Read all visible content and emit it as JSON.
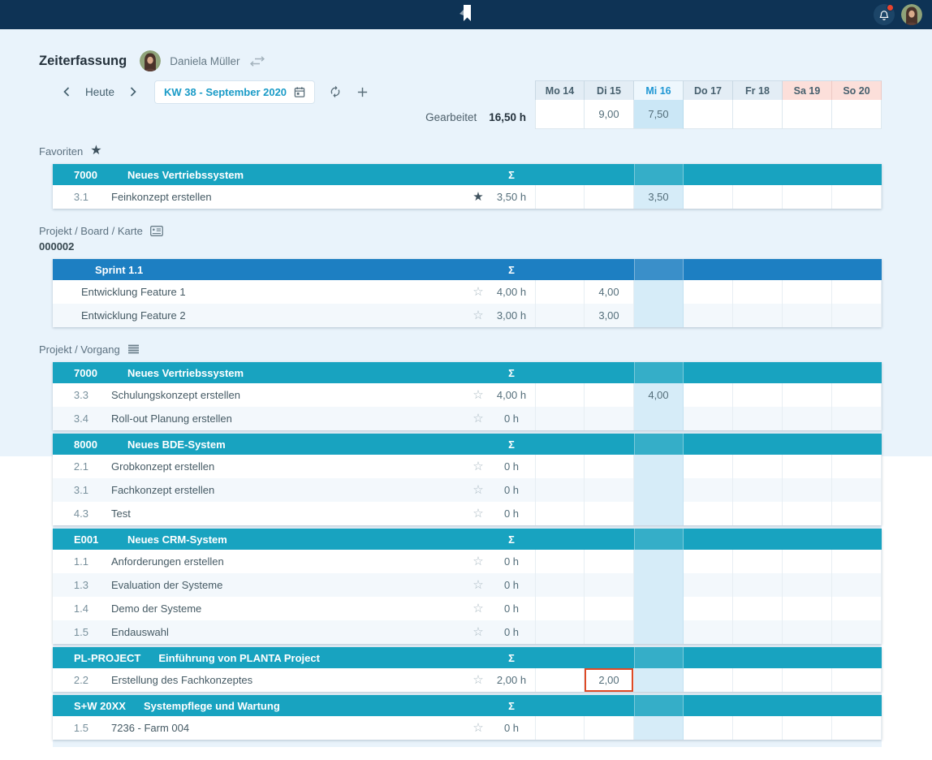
{
  "header": {
    "title": "Zeiterfassung",
    "user": "Daniela Müller"
  },
  "toolbar": {
    "today_label": "Heute",
    "week_label": "KW 38 - September 2020"
  },
  "summary": {
    "label": "Gearbeitet",
    "value": "16,50 h"
  },
  "sum_symbol": "Σ",
  "colors": {
    "topbar": "#0e3355",
    "teal_header": "#18a3c0",
    "blue_header": "#1d7fc2",
    "today_highlight": "#d6ecf8",
    "weekend_header": "#fcdfda",
    "selection_border": "#dd4a26"
  },
  "calendar": {
    "today_index": 2,
    "days": [
      {
        "label": "Mo 14",
        "type": "weekday"
      },
      {
        "label": "Di 15",
        "type": "weekday"
      },
      {
        "label": "Mi 16",
        "type": "today"
      },
      {
        "label": "Do 17",
        "type": "weekday"
      },
      {
        "label": "Fr 18",
        "type": "weekday"
      },
      {
        "label": "Sa 19",
        "type": "weekend"
      },
      {
        "label": "So 20",
        "type": "weekend"
      }
    ],
    "day_totals": [
      "",
      "9,00",
      "7,50",
      "",
      "",
      "",
      ""
    ]
  },
  "sections": [
    {
      "label": "Favoriten",
      "icon": "star-icon",
      "tables": [
        {
          "code": "7000",
          "title": "Neues Vertriebssystem",
          "style": "teal",
          "rows": [
            {
              "num": "3.1",
              "name": "Feinkonzept erstellen",
              "favorite": true,
              "sum": "3,50 h",
              "cells": [
                "",
                "",
                "3,50",
                "",
                "",
                "",
                ""
              ]
            }
          ]
        }
      ]
    },
    {
      "label": "Projekt / Board / Karte",
      "icon": "card-icon",
      "sublabel": "000002",
      "tables": [
        {
          "code": "",
          "title": "Sprint 1.1",
          "style": "blue",
          "rows": [
            {
              "num": "",
              "name": "Entwicklung Feature 1",
              "favorite": false,
              "sum": "4,00 h",
              "cells": [
                "",
                "4,00",
                "",
                "",
                "",
                "",
                ""
              ]
            },
            {
              "num": "",
              "name": "Entwicklung Feature 2",
              "favorite": false,
              "sum": "3,00 h",
              "cells": [
                "",
                "3,00",
                "",
                "",
                "",
                "",
                ""
              ]
            }
          ]
        }
      ]
    },
    {
      "label": "Projekt / Vorgang",
      "icon": "list-icon",
      "tables": [
        {
          "code": "7000",
          "title": "Neues Vertriebssystem",
          "style": "teal",
          "rows": [
            {
              "num": "3.3",
              "name": "Schulungskonzept erstellen",
              "favorite": false,
              "sum": "4,00 h",
              "cells": [
                "",
                "",
                "4,00",
                "",
                "",
                "",
                ""
              ]
            },
            {
              "num": "3.4",
              "name": "Roll-out Planung erstellen",
              "favorite": false,
              "sum": "0 h",
              "cells": [
                "",
                "",
                "",
                "",
                "",
                "",
                ""
              ]
            }
          ]
        },
        {
          "code": "8000",
          "title": "Neues BDE-System",
          "style": "teal",
          "rows": [
            {
              "num": "2.1",
              "name": "Grobkonzept erstellen",
              "favorite": false,
              "sum": "0 h",
              "cells": [
                "",
                "",
                "",
                "",
                "",
                "",
                ""
              ]
            },
            {
              "num": "3.1",
              "name": "Fachkonzept erstellen",
              "favorite": false,
              "sum": "0 h",
              "cells": [
                "",
                "",
                "",
                "",
                "",
                "",
                ""
              ]
            },
            {
              "num": "4.3",
              "name": "Test",
              "favorite": false,
              "sum": "0 h",
              "cells": [
                "",
                "",
                "",
                "",
                "",
                "",
                ""
              ]
            }
          ]
        },
        {
          "code": "E001",
          "title": "Neues CRM-System",
          "style": "teal",
          "rows": [
            {
              "num": "1.1",
              "name": "Anforderungen erstellen",
              "favorite": false,
              "sum": "0 h",
              "cells": [
                "",
                "",
                "",
                "",
                "",
                "",
                ""
              ]
            },
            {
              "num": "1.3",
              "name": "Evaluation der Systeme",
              "favorite": false,
              "sum": "0 h",
              "cells": [
                "",
                "",
                "",
                "",
                "",
                "",
                ""
              ]
            },
            {
              "num": "1.4",
              "name": "Demo der Systeme",
              "favorite": false,
              "sum": "0 h",
              "cells": [
                "",
                "",
                "",
                "",
                "",
                "",
                ""
              ]
            },
            {
              "num": "1.5",
              "name": "Endauswahl",
              "favorite": false,
              "sum": "0 h",
              "cells": [
                "",
                "",
                "",
                "",
                "",
                "",
                ""
              ]
            }
          ]
        },
        {
          "code": "PL-PROJECT",
          "title": "Einführung von PLANTA Project",
          "style": "teal",
          "rows": [
            {
              "num": "2.2",
              "name": "Erstellung des Fachkonzeptes",
              "favorite": false,
              "sum": "2,00 h",
              "cells": [
                "",
                "2,00",
                "",
                "",
                "",
                "",
                ""
              ],
              "selected_col": 1
            }
          ]
        },
        {
          "code": "S+W 20XX",
          "title": "Systempflege und Wartung",
          "style": "teal",
          "rows": [
            {
              "num": "1.5",
              "name": "7236 - Farm 004",
              "favorite": false,
              "sum": "0 h",
              "cells": [
                "",
                "",
                "",
                "",
                "",
                "",
                ""
              ]
            }
          ]
        }
      ]
    }
  ]
}
